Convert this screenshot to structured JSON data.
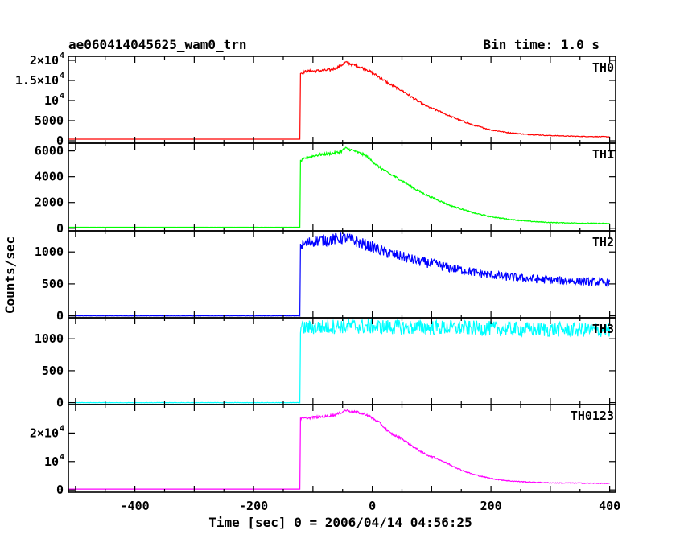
{
  "header": {
    "title": "ae060414045625_wam0_trn",
    "bin_time": "Bin time: 1.0 s"
  },
  "chart_data": {
    "type": "line",
    "title": "ae060414045625_wam0_trn",
    "xlabel": "Time [sec] 0 = 2006/04/14 04:56:25",
    "ylabel": "Counts/sec",
    "xlim": [
      -512,
      410
    ],
    "x_ticks": [
      "-400",
      "-200",
      "0",
      "200",
      "400"
    ],
    "x_tick_values": [
      -400,
      -200,
      0,
      200,
      400
    ],
    "grid": false,
    "panels": [
      {
        "channel": "TH0",
        "color": "#ff0000",
        "ylim": [
          -600,
          21000
        ],
        "y_ticks": [
          {
            "value": 0,
            "label": "0"
          },
          {
            "value": 5000,
            "label": "5000"
          },
          {
            "value": 10000,
            "label": "10",
            "exp": "4"
          },
          {
            "value": 15000,
            "label": "1.5×10",
            "exp": "4"
          },
          {
            "value": 20000,
            "label": "2×10",
            "exp": "4"
          }
        ],
        "noise": 350,
        "points": [
          [
            -512,
            400
          ],
          [
            -122,
            400
          ],
          [
            -121,
            16800
          ],
          [
            -110,
            17300
          ],
          [
            -90,
            17400
          ],
          [
            -70,
            17600
          ],
          [
            -55,
            18500
          ],
          [
            -45,
            19500
          ],
          [
            -30,
            18800
          ],
          [
            -10,
            17800
          ],
          [
            10,
            16000
          ],
          [
            30,
            14000
          ],
          [
            50,
            12500
          ],
          [
            70,
            10500
          ],
          [
            90,
            8700
          ],
          [
            110,
            7500
          ],
          [
            130,
            6200
          ],
          [
            150,
            5000
          ],
          [
            170,
            3900
          ],
          [
            200,
            2700
          ],
          [
            230,
            2000
          ],
          [
            260,
            1600
          ],
          [
            300,
            1300
          ],
          [
            350,
            1100
          ],
          [
            400,
            1000
          ]
        ]
      },
      {
        "channel": "TH1",
        "color": "#00ff00",
        "ylim": [
          -200,
          6600
        ],
        "y_ticks": [
          {
            "value": 0,
            "label": "0"
          },
          {
            "value": 2000,
            "label": "2000"
          },
          {
            "value": 4000,
            "label": "4000"
          },
          {
            "value": 6000,
            "label": "6000"
          }
        ],
        "noise": 110,
        "points": [
          [
            -512,
            80
          ],
          [
            -122,
            80
          ],
          [
            -121,
            5200
          ],
          [
            -110,
            5500
          ],
          [
            -90,
            5700
          ],
          [
            -70,
            5800
          ],
          [
            -55,
            5900
          ],
          [
            -45,
            6200
          ],
          [
            -30,
            6000
          ],
          [
            -10,
            5600
          ],
          [
            10,
            4800
          ],
          [
            30,
            4200
          ],
          [
            50,
            3700
          ],
          [
            70,
            3100
          ],
          [
            90,
            2600
          ],
          [
            110,
            2200
          ],
          [
            130,
            1800
          ],
          [
            150,
            1500
          ],
          [
            170,
            1200
          ],
          [
            200,
            900
          ],
          [
            230,
            700
          ],
          [
            260,
            550
          ],
          [
            300,
            450
          ],
          [
            350,
            400
          ],
          [
            400,
            370
          ]
        ]
      },
      {
        "channel": "TH2",
        "color": "#0000ff",
        "ylim": [
          -30,
          1330
        ],
        "y_ticks": [
          {
            "value": 0,
            "label": "0"
          },
          {
            "value": 500,
            "label": "500"
          },
          {
            "value": 1000,
            "label": "1000"
          }
        ],
        "noise": 95,
        "points": [
          [
            -512,
            0
          ],
          [
            -122,
            0
          ],
          [
            -121,
            1100
          ],
          [
            -100,
            1170
          ],
          [
            -70,
            1190
          ],
          [
            -45,
            1220
          ],
          [
            -20,
            1140
          ],
          [
            0,
            1080
          ],
          [
            20,
            1000
          ],
          [
            40,
            950
          ],
          [
            60,
            900
          ],
          [
            80,
            850
          ],
          [
            100,
            820
          ],
          [
            130,
            750
          ],
          [
            160,
            700
          ],
          [
            200,
            640
          ],
          [
            250,
            590
          ],
          [
            300,
            560
          ],
          [
            350,
            540
          ],
          [
            400,
            520
          ]
        ]
      },
      {
        "channel": "TH3",
        "color": "#00ffff",
        "ylim": [
          -30,
          1330
        ],
        "y_ticks": [
          {
            "value": 0,
            "label": "0"
          },
          {
            "value": 500,
            "label": "500"
          },
          {
            "value": 1000,
            "label": "1000"
          }
        ],
        "noise": 120,
        "points": [
          [
            -512,
            0
          ],
          [
            -122,
            0
          ],
          [
            -121,
            1170
          ],
          [
            -50,
            1200
          ],
          [
            50,
            1180
          ],
          [
            150,
            1170
          ],
          [
            250,
            1150
          ],
          [
            400,
            1140
          ]
        ]
      },
      {
        "channel": "TH0123",
        "color": "#ff00ff",
        "ylim": [
          -800,
          30000
        ],
        "y_ticks": [
          {
            "value": 0,
            "label": "0"
          },
          {
            "value": 10000,
            "label": "10",
            "exp": "4"
          },
          {
            "value": 20000,
            "label": "2×10",
            "exp": "4"
          }
        ],
        "noise": 450,
        "points": [
          [
            -512,
            300
          ],
          [
            -122,
            300
          ],
          [
            -121,
            25000
          ],
          [
            -100,
            25500
          ],
          [
            -80,
            25800
          ],
          [
            -60,
            26500
          ],
          [
            -45,
            28000
          ],
          [
            -30,
            27500
          ],
          [
            -10,
            26500
          ],
          [
            10,
            24000
          ],
          [
            30,
            20000
          ],
          [
            50,
            18000
          ],
          [
            70,
            15000
          ],
          [
            90,
            12500
          ],
          [
            110,
            11000
          ],
          [
            130,
            9000
          ],
          [
            150,
            7000
          ],
          [
            170,
            5500
          ],
          [
            200,
            4000
          ],
          [
            230,
            3200
          ],
          [
            260,
            2800
          ],
          [
            300,
            2500
          ],
          [
            350,
            2400
          ],
          [
            400,
            2300
          ]
        ]
      }
    ]
  }
}
